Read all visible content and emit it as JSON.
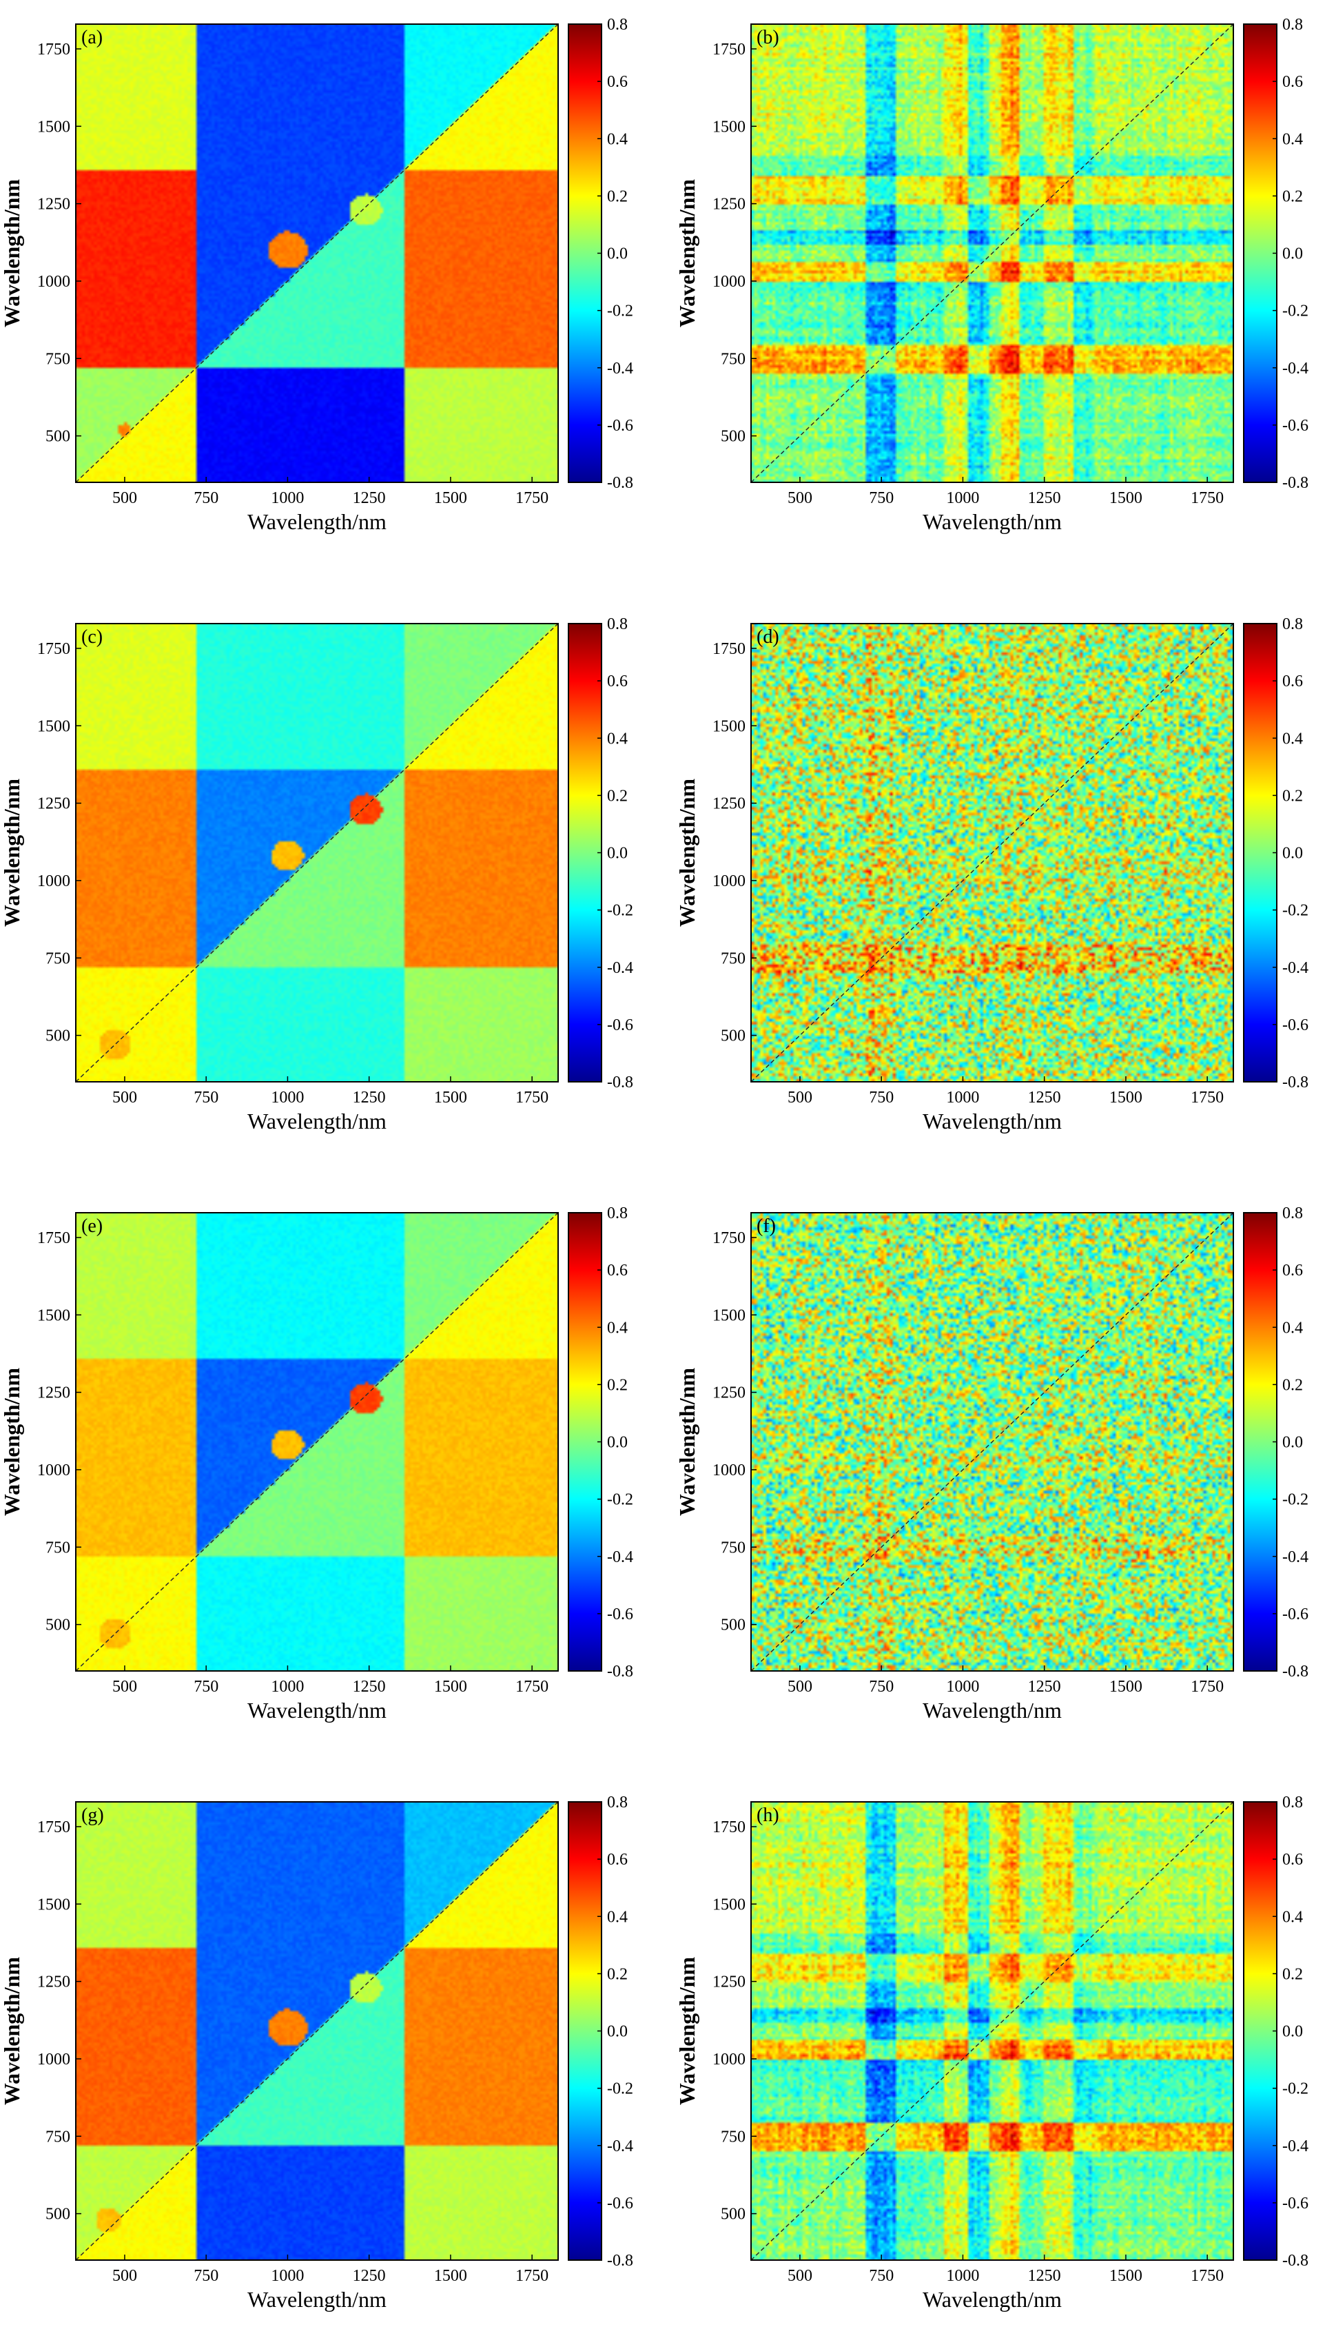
{
  "chart_data": {
    "type": "heatmap",
    "layout": "4 rows x 2 columns of correlation heatmaps",
    "shared": {
      "xlabel": "Wavelength/nm",
      "ylabel": "Wavelength/nm",
      "xlim": [
        350,
        1830
      ],
      "ylim": [
        350,
        1830
      ],
      "x_ticks": [
        500,
        750,
        1000,
        1250,
        1500,
        1750
      ],
      "y_ticks": [
        500,
        750,
        1000,
        1250,
        1500,
        1750
      ],
      "colorbar": {
        "min": -0.8,
        "max": 0.8,
        "ticks": [
          0.8,
          0.6,
          0.4,
          0.2,
          0.0,
          -0.2,
          -0.4,
          -0.6,
          -0.8
        ],
        "tick_labels": [
          "0.8",
          "0.6",
          "0.4",
          "0.2",
          "0.0",
          "-0.2",
          "-0.4",
          "-0.6",
          "-0.8"
        ],
        "colormap": "jet",
        "colors": [
          "#00008f",
          "#0000ff",
          "#0080ff",
          "#00ffff",
          "#80ff80",
          "#ffff00",
          "#ff8000",
          "#ff0000",
          "#800000"
        ]
      },
      "band_edges": [
        350,
        720,
        1360,
        1830
      ]
    },
    "panels": [
      {
        "label": "(a)",
        "kind": "smooth",
        "block_values": [
          [
            0.15,
            -0.6,
            0.1
          ],
          [
            0.55,
            -0.4,
            0.45
          ],
          [
            0.15,
            -0.5,
            -0.1
          ]
        ],
        "diag_values": [
          0.2,
          -0.1,
          0.2
        ],
        "features": [
          {
            "x": 1000,
            "y": 1100,
            "r": 60,
            "v": 0.4
          },
          {
            "x": 1240,
            "y": 1230,
            "r": 50,
            "v": 0.1
          },
          {
            "x": 500,
            "y": 520,
            "r": 20,
            "v": 0.4
          }
        ]
      },
      {
        "label": "(b)",
        "kind": "banded",
        "row_profile": [
          [
            350,
            700,
            -0.1
          ],
          [
            700,
            790,
            0.5
          ],
          [
            790,
            940,
            -0.2
          ],
          [
            940,
            1000,
            -0.3
          ],
          [
            1000,
            1060,
            0.4
          ],
          [
            1060,
            1120,
            -0.1
          ],
          [
            1120,
            1160,
            -0.5
          ],
          [
            1160,
            1250,
            -0.1
          ],
          [
            1250,
            1340,
            0.3
          ],
          [
            1340,
            1400,
            -0.2
          ],
          [
            1400,
            1830,
            0.1
          ]
        ],
        "col_profile": [
          [
            350,
            700,
            0.1
          ],
          [
            700,
            790,
            -0.5
          ],
          [
            790,
            940,
            0.0
          ],
          [
            940,
            1020,
            0.35
          ],
          [
            1020,
            1080,
            -0.3
          ],
          [
            1080,
            1120,
            0.2
          ],
          [
            1120,
            1170,
            0.5
          ],
          [
            1170,
            1250,
            0.0
          ],
          [
            1250,
            1340,
            0.3
          ],
          [
            1340,
            1400,
            -0.1
          ],
          [
            1400,
            1830,
            0.05
          ]
        ]
      },
      {
        "label": "(c)",
        "kind": "smooth",
        "block_values": [
          [
            0.3,
            -0.15,
            0.05
          ],
          [
            0.4,
            -0.3,
            0.4
          ],
          [
            0.15,
            -0.15,
            0.1
          ]
        ],
        "diag_values": [
          0.2,
          0.0,
          0.2
        ],
        "features": [
          {
            "x": 1000,
            "y": 1080,
            "r": 50,
            "v": 0.3
          },
          {
            "x": 1240,
            "y": 1230,
            "r": 50,
            "v": 0.5
          },
          {
            "x": 470,
            "y": 470,
            "r": 50,
            "v": 0.3
          }
        ]
      },
      {
        "label": "(d)",
        "kind": "noisy",
        "base": 0.05,
        "row_profile": [
          [
            700,
            790,
            0.3
          ],
          [
            1000,
            1060,
            0.15
          ],
          [
            1120,
            1160,
            -0.15
          ]
        ],
        "col_profile": [
          [
            480,
            560,
            0.1
          ],
          [
            700,
            790,
            0.2
          ],
          [
            1100,
            1200,
            0.05
          ]
        ]
      },
      {
        "label": "(e)",
        "kind": "smooth",
        "block_values": [
          [
            0.3,
            -0.2,
            0.05
          ],
          [
            0.3,
            -0.35,
            0.3
          ],
          [
            0.1,
            -0.2,
            0.1
          ]
        ],
        "diag_values": [
          0.2,
          0.0,
          0.2
        ],
        "features": [
          {
            "x": 1000,
            "y": 1080,
            "r": 50,
            "v": 0.3
          },
          {
            "x": 1240,
            "y": 1230,
            "r": 50,
            "v": 0.5
          },
          {
            "x": 470,
            "y": 470,
            "r": 50,
            "v": 0.3
          }
        ]
      },
      {
        "label": "(f)",
        "kind": "noisy",
        "base": 0.02,
        "row_profile": [
          [
            700,
            790,
            0.25
          ],
          [
            1000,
            1060,
            0.15
          ]
        ],
        "col_profile": [
          [
            700,
            790,
            0.15
          ]
        ]
      },
      {
        "label": "(g)",
        "kind": "smooth",
        "block_values": [
          [
            0.2,
            -0.5,
            0.1
          ],
          [
            0.45,
            -0.35,
            0.4
          ],
          [
            0.1,
            -0.45,
            -0.2
          ]
        ],
        "diag_values": [
          0.2,
          -0.1,
          0.2
        ],
        "features": [
          {
            "x": 1000,
            "y": 1100,
            "r": 60,
            "v": 0.4
          },
          {
            "x": 1240,
            "y": 1230,
            "r": 50,
            "v": 0.1
          },
          {
            "x": 450,
            "y": 480,
            "r": 40,
            "v": 0.3
          }
        ]
      },
      {
        "label": "(h)",
        "kind": "banded",
        "row_profile": [
          [
            350,
            700,
            -0.1
          ],
          [
            700,
            790,
            0.5
          ],
          [
            790,
            940,
            -0.2
          ],
          [
            940,
            1000,
            -0.3
          ],
          [
            1000,
            1060,
            0.45
          ],
          [
            1060,
            1120,
            -0.1
          ],
          [
            1120,
            1160,
            -0.5
          ],
          [
            1160,
            1250,
            -0.1
          ],
          [
            1250,
            1340,
            0.3
          ],
          [
            1340,
            1400,
            -0.2
          ],
          [
            1400,
            1830,
            0.1
          ]
        ],
        "col_profile": [
          [
            350,
            700,
            0.1
          ],
          [
            700,
            790,
            -0.5
          ],
          [
            790,
            940,
            0.0
          ],
          [
            940,
            1020,
            0.35
          ],
          [
            1020,
            1080,
            -0.3
          ],
          [
            1080,
            1120,
            0.2
          ],
          [
            1120,
            1170,
            0.5
          ],
          [
            1170,
            1250,
            0.0
          ],
          [
            1250,
            1340,
            0.3
          ],
          [
            1340,
            1400,
            -0.1
          ],
          [
            1400,
            1830,
            0.05
          ]
        ]
      }
    ]
  }
}
